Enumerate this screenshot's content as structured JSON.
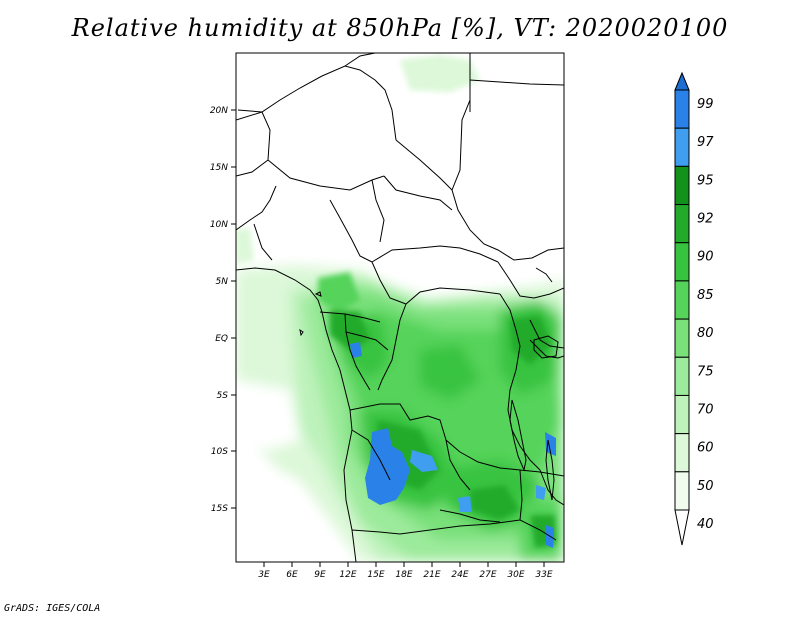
{
  "title": "Relative humidity at 850hPa [%], VT: 2020020100",
  "credit": "GrADS: IGES/COLA",
  "map": {
    "lat_labels": [
      "20N",
      "15N",
      "10N",
      "5N",
      "EQ",
      "5S",
      "10S",
      "15S"
    ],
    "lon_labels": [
      "3E",
      "6E",
      "9E",
      "12E",
      "15E",
      "18E",
      "21E",
      "24E",
      "27E",
      "30E",
      "33E"
    ]
  },
  "colorbar": {
    "levels": [
      {
        "label": "99",
        "color": "#1c6ed2"
      },
      {
        "label": "97",
        "color": "#2a82e8"
      },
      {
        "label": "95",
        "color": "#3f9ef0"
      },
      {
        "label": "92",
        "color": "#12921a"
      },
      {
        "label": "90",
        "color": "#23aa2b"
      },
      {
        "label": "85",
        "color": "#37c33f"
      },
      {
        "label": "80",
        "color": "#55d35a"
      },
      {
        "label": "75",
        "color": "#79e07a"
      },
      {
        "label": "70",
        "color": "#9cea9b"
      },
      {
        "label": "60",
        "color": "#bdf2bb"
      },
      {
        "label": "50",
        "color": "#dcf8d8"
      },
      {
        "label": "40",
        "color": "#f1fcef"
      }
    ],
    "top_color": "#1c6ed2"
  }
}
